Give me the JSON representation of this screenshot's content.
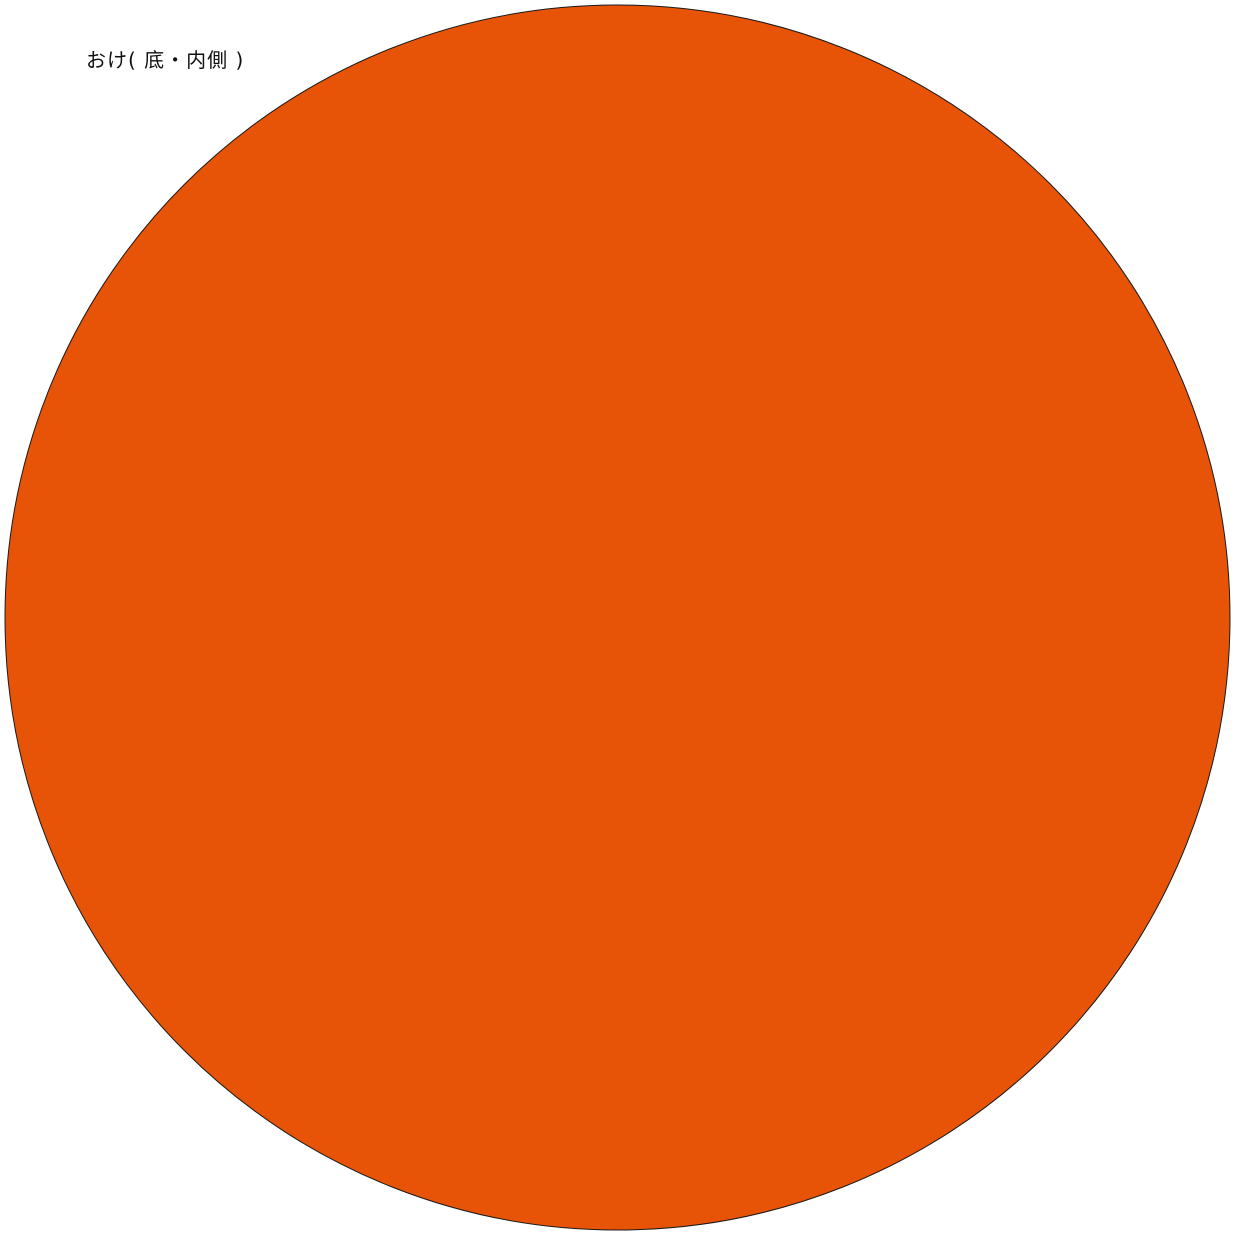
{
  "label": "おけ( 底・内側 )",
  "shape": {
    "kind": "circle",
    "fill": "#E85407",
    "stroke": "#1a1a1a"
  }
}
